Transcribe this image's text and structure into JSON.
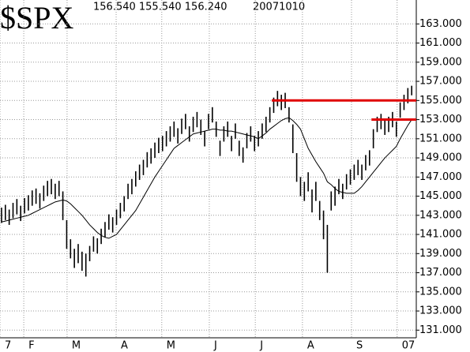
{
  "chart_data": {
    "type": "ohlc",
    "title": "$SPX",
    "subtitle": "156.540 155.540 156.240",
    "date": "20071010",
    "bar_color": "#000000",
    "ma_color": "#000000",
    "grid": true,
    "xlim": [
      -0.4,
      108.2
    ],
    "ylim": [
      130.2,
      165.5
    ],
    "yticks": [
      {
        "value": 131,
        "label": "131.000"
      },
      {
        "value": 133,
        "label": "133.000"
      },
      {
        "value": 135,
        "label": "135.000"
      },
      {
        "value": 137,
        "label": "137.000"
      },
      {
        "value": 139,
        "label": "139.000"
      },
      {
        "value": 141,
        "label": "141.000"
      },
      {
        "value": 143,
        "label": "143.000"
      },
      {
        "value": 145,
        "label": "145.000"
      },
      {
        "value": 147,
        "label": "147.000"
      },
      {
        "value": 149,
        "label": "149.000"
      },
      {
        "value": 151,
        "label": "151.000"
      },
      {
        "value": 153,
        "label": "153.000"
      },
      {
        "value": 155,
        "label": "155.000"
      },
      {
        "value": 157,
        "label": "157.000"
      },
      {
        "value": 159,
        "label": "159.000"
      },
      {
        "value": 161,
        "label": "161.000"
      },
      {
        "value": 163,
        "label": "163.000"
      }
    ],
    "xticks": [
      {
        "value": -0.4,
        "label": "7"
      },
      {
        "value": 5.8,
        "label": "F"
      },
      {
        "value": 17.1,
        "label": "M"
      },
      {
        "value": 29.9,
        "label": "A"
      },
      {
        "value": 41.8,
        "label": "M"
      },
      {
        "value": 54.2,
        "label": "J"
      },
      {
        "value": 66.2,
        "label": "J"
      },
      {
        "value": 78.5,
        "label": "A"
      },
      {
        "value": 91.3,
        "label": "S"
      },
      {
        "value": 103.2,
        "label": "07"
      }
    ],
    "low": [
      142.2,
      142.5,
      142.0,
      142.7,
      143.1,
      142.4,
      143.2,
      143.5,
      144.0,
      144.2,
      143.7,
      144.5,
      145.0,
      145.2,
      144.7,
      145.0,
      142.5,
      139.5,
      138.5,
      137.5,
      138.0,
      137.2,
      136.6,
      138.2,
      139.2,
      139.0,
      140.0,
      140.7,
      141.5,
      141.2,
      142.0,
      142.7,
      143.4,
      144.7,
      145.2,
      146.0,
      146.7,
      147.2,
      148.0,
      148.4,
      149.0,
      149.5,
      149.7,
      150.2,
      150.7,
      151.2,
      150.5,
      151.5,
      152.0,
      150.7,
      151.7,
      152.2,
      151.4,
      150.2,
      152.0,
      152.7,
      151.2,
      149.2,
      150.7,
      151.2,
      149.7,
      151.0,
      149.2,
      148.5,
      150.0,
      150.7,
      149.7,
      150.2,
      151.0,
      151.7,
      152.7,
      153.7,
      154.4,
      154.0,
      154.2,
      152.7,
      149.5,
      146.5,
      145.0,
      144.5,
      145.5,
      143.3,
      144.5,
      142.5,
      140.5,
      137.0,
      143.5,
      144.0,
      145.2,
      144.7,
      145.7,
      146.2,
      146.7,
      147.2,
      146.7,
      147.7,
      148.2,
      150.0,
      151.7,
      152.0,
      151.4,
      151.7,
      152.2,
      151.2,
      153.2,
      154.0,
      154.7,
      155.54
    ],
    "high": [
      143.8,
      144.1,
      143.6,
      144.3,
      144.7,
      144.0,
      144.8,
      145.1,
      145.6,
      145.8,
      145.3,
      146.1,
      146.6,
      146.8,
      146.3,
      146.6,
      145.5,
      142.5,
      140.5,
      139.5,
      140.0,
      139.2,
      139.0,
      139.8,
      140.8,
      140.6,
      141.6,
      142.3,
      143.1,
      142.8,
      143.6,
      144.3,
      145.0,
      146.3,
      146.8,
      147.6,
      148.3,
      148.8,
      149.6,
      150.0,
      150.6,
      151.1,
      151.3,
      151.8,
      152.3,
      152.8,
      152.1,
      153.1,
      153.6,
      152.3,
      153.3,
      153.8,
      153.0,
      151.8,
      153.6,
      154.3,
      152.8,
      150.8,
      152.3,
      152.8,
      151.3,
      152.6,
      150.8,
      150.1,
      151.6,
      152.3,
      151.3,
      151.8,
      152.6,
      153.3,
      154.3,
      155.3,
      156.0,
      155.6,
      155.8,
      154.3,
      152.5,
      149.5,
      147.0,
      146.5,
      147.5,
      145.7,
      146.5,
      144.5,
      143.5,
      142.0,
      145.5,
      146.0,
      146.8,
      146.3,
      147.3,
      147.8,
      148.3,
      148.8,
      148.3,
      149.3,
      149.8,
      152.0,
      153.3,
      153.6,
      153.0,
      153.3,
      153.8,
      152.8,
      154.8,
      155.6,
      156.3,
      156.54
    ],
    "ma": [
      142.3,
      142.4,
      142.5,
      142.6,
      142.7,
      142.8,
      142.9,
      143.0,
      143.2,
      143.4,
      143.6,
      143.8,
      144.0,
      144.2,
      144.4,
      144.5,
      144.6,
      144.5,
      144.2,
      143.8,
      143.4,
      143.0,
      142.5,
      142.0,
      141.6,
      141.2,
      140.9,
      140.7,
      140.6,
      140.8,
      141.0,
      141.5,
      142.0,
      142.5,
      143.0,
      143.5,
      144.2,
      144.9,
      145.6,
      146.3,
      147.0,
      147.6,
      148.2,
      148.8,
      149.4,
      150.0,
      150.3,
      150.6,
      150.9,
      151.2,
      151.5,
      151.6,
      151.7,
      151.8,
      151.9,
      152.0,
      152.0,
      151.9,
      151.9,
      151.8,
      151.8,
      151.7,
      151.6,
      151.5,
      151.4,
      151.3,
      151.2,
      151.0,
      151.3,
      151.6,
      152.0,
      152.3,
      152.6,
      152.9,
      153.1,
      153.2,
      152.9,
      152.5,
      152.0,
      151.0,
      150.0,
      149.3,
      148.6,
      148.0,
      147.4,
      146.5,
      146.2,
      145.8,
      145.5,
      145.4,
      145.3,
      145.3,
      145.3,
      145.6,
      146.0,
      146.5,
      147.0,
      147.5,
      148.0,
      148.5,
      149.0,
      149.4,
      149.8,
      150.2,
      151.0,
      151.7,
      152.4,
      153.0
    ],
    "hlines": [
      {
        "value": 155,
        "from": 70.5,
        "color": "#e00000"
      },
      {
        "value": 153,
        "from": 96.5,
        "color": "#e00000"
      }
    ]
  }
}
